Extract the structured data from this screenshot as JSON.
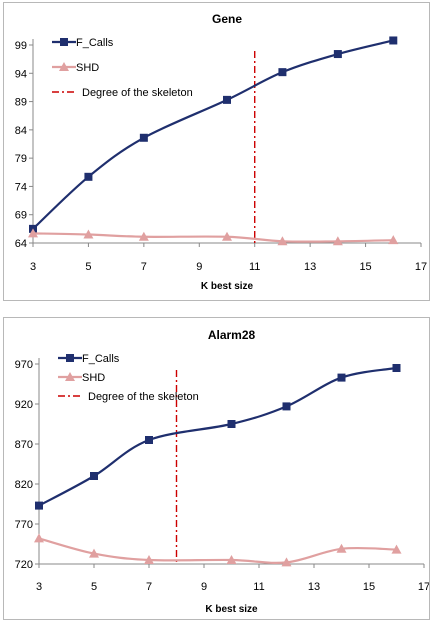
{
  "chart_data": [
    {
      "type": "line",
      "title": "Gene",
      "xlabel": "K best size",
      "ylabel": "",
      "xlim": [
        3,
        17
      ],
      "ylim": [
        64,
        99
      ],
      "xticks": [
        3,
        5,
        7,
        9,
        11,
        13,
        15,
        17
      ],
      "yticks": [
        64,
        69,
        74,
        79,
        84,
        89,
        94,
        99
      ],
      "legend_position": "top-left",
      "series": [
        {
          "name": "F_Calls",
          "color": "#1f2f6e",
          "marker": "square",
          "x": [
            3,
            5,
            7,
            10,
            12,
            14,
            16
          ],
          "y": [
            66.5,
            75.7,
            82.6,
            89.3,
            94.2,
            97.4,
            99.8
          ]
        },
        {
          "name": "SHD",
          "color": "#e0a0a0",
          "marker": "triangle",
          "x": [
            3,
            5,
            7,
            10,
            12,
            14,
            16
          ],
          "y": [
            65.7,
            65.5,
            65.1,
            65.1,
            64.3,
            64.3,
            64.5
          ]
        }
      ],
      "reference_line": {
        "name": "Degree of the skeleton",
        "x": 11,
        "color": "#cc0000",
        "style": "dash-dot"
      }
    },
    {
      "type": "line",
      "title": "Alarm28",
      "xlabel": "K best size",
      "ylabel": "",
      "xlim": [
        3,
        17
      ],
      "ylim": [
        720,
        970
      ],
      "xticks": [
        3,
        5,
        7,
        9,
        11,
        13,
        15,
        17
      ],
      "yticks": [
        720,
        770,
        820,
        870,
        920,
        970
      ],
      "legend_position": "top-left",
      "series": [
        {
          "name": "F_Calls",
          "color": "#1f2f6e",
          "marker": "square",
          "x": [
            3,
            5,
            7,
            10,
            12,
            14,
            16
          ],
          "y": [
            793,
            830,
            875,
            895,
            917,
            953,
            965
          ]
        },
        {
          "name": "SHD",
          "color": "#e0a0a0",
          "marker": "triangle",
          "x": [
            3,
            5,
            7,
            10,
            12,
            14,
            16
          ],
          "y": [
            752,
            733,
            725,
            725,
            722,
            739,
            738
          ]
        }
      ],
      "reference_line": {
        "name": "Degree of the skeleton",
        "x": 8,
        "color": "#cc0000",
        "style": "dash-dot"
      }
    }
  ]
}
